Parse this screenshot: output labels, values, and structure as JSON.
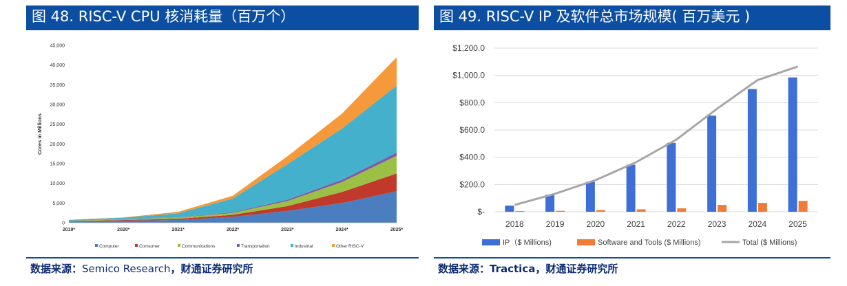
{
  "left": {
    "title": "图 48. RISC-V CPU 核消耗量（百万个）",
    "source_label": "数据来源：",
    "source_text": "Semico Research",
    "source_suffix": "，财通证券研究所"
  },
  "right": {
    "title": "图 49. RISC-V IP 及软件总市场规模( 百万美元 )",
    "source_label": "数据来源：",
    "source_text": "Tractica",
    "source_suffix": "，财通证券研究所"
  },
  "chart_data": [
    {
      "type": "area",
      "stacked": true,
      "ylabel": "Cores in Millions",
      "ylim": [
        0,
        45000
      ],
      "yticks": [
        "0",
        "5,000",
        "10,000",
        "15,000",
        "20,000",
        "25,000",
        "30,000",
        "35,000",
        "40,000",
        "45,000"
      ],
      "x": [
        "2019*",
        "2020*",
        "2021*",
        "2022*",
        "2023*",
        "2024*",
        "2025*"
      ],
      "legend_position": "bottom",
      "series": [
        {
          "name": "Computer",
          "color": "#4a7ebf",
          "values": [
            300,
            500,
            700,
            1500,
            3000,
            5000,
            8000
          ]
        },
        {
          "name": "Consumer",
          "color": "#c0392b",
          "values": [
            100,
            200,
            300,
            500,
            1200,
            2800,
            4500
          ]
        },
        {
          "name": "Communications",
          "color": "#9cbf45",
          "values": [
            100,
            150,
            300,
            500,
            1300,
            2500,
            4500
          ]
        },
        {
          "name": "Transportation",
          "color": "#7e5ca8",
          "values": [
            20,
            40,
            80,
            150,
            350,
            600,
            800
          ]
        },
        {
          "name": "Industrial",
          "color": "#45b0cc",
          "values": [
            200,
            400,
            1000,
            3500,
            9000,
            13000,
            17000
          ]
        },
        {
          "name": "Other RISC-V",
          "color": "#f5993a",
          "values": [
            30,
            60,
            400,
            700,
            2000,
            3800,
            7200
          ]
        }
      ]
    },
    {
      "type": "bar",
      "categories": [
        "2018",
        "2019",
        "2020",
        "2021",
        "2022",
        "2023",
        "2024",
        "2025"
      ],
      "ylim": [
        0,
        1200
      ],
      "yticks": [
        "$-",
        "$200.0",
        "$400.0",
        "$600.0",
        "$800.0",
        "$1,000.0",
        "$1,200.0"
      ],
      "grid": true,
      "legend_position": "bottom",
      "series": [
        {
          "name": "IP（$ Millions)",
          "type": "bar",
          "color": "#3d6fd6",
          "values": [
            45,
            125,
            220,
            345,
            505,
            705,
            900,
            985
          ]
        },
        {
          "name": "Software and Tools ($ Millions)",
          "type": "bar",
          "color": "#f07c35",
          "values": [
            5,
            7,
            12,
            18,
            25,
            50,
            65,
            80
          ]
        },
        {
          "name": "Total ($ Millions)",
          "type": "line",
          "color": "#a6a6a6",
          "values": [
            50,
            132,
            232,
            363,
            530,
            755,
            965,
            1065
          ]
        }
      ]
    }
  ]
}
